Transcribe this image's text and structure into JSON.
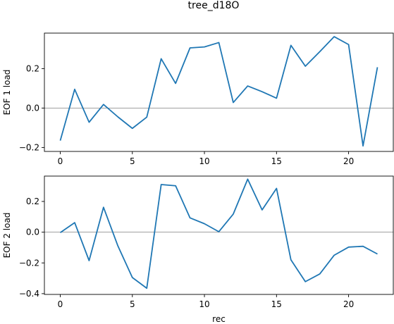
{
  "figure_title": "tree_d18O",
  "colors": {
    "series": "#1f77b4",
    "zero_line": "#808080"
  },
  "chart_data": [
    {
      "type": "line",
      "title": "",
      "xlabel": "",
      "ylabel": "EOF 1 load",
      "xlim": [
        -1.1,
        23.1
      ],
      "ylim": [
        -0.22,
        0.38
      ],
      "xticks": [
        0,
        5,
        10,
        15,
        20
      ],
      "xtick_labels": [
        "0",
        "5",
        "10",
        "15",
        "20"
      ],
      "yticks": [
        -0.2,
        0.0,
        0.2
      ],
      "ytick_labels": [
        "−0.2",
        "0.0",
        "0.2"
      ],
      "zero_line": 0,
      "grid": false,
      "x": [
        0,
        1,
        2,
        3,
        4,
        5,
        6,
        7,
        8,
        9,
        10,
        11,
        12,
        13,
        14,
        15,
        16,
        17,
        18,
        19,
        20,
        21,
        22
      ],
      "series": [
        {
          "values": [
            -0.165,
            0.095,
            -0.072,
            0.018,
            -0.045,
            -0.103,
            -0.046,
            0.25,
            0.125,
            0.305,
            0.31,
            0.332,
            0.028,
            0.112,
            0.083,
            0.05,
            0.318,
            0.212,
            0.286,
            0.362,
            0.322,
            -0.192,
            0.207
          ]
        }
      ]
    },
    {
      "type": "line",
      "title": "",
      "xlabel": "rec",
      "ylabel": "EOF 2 load",
      "xlim": [
        -1.1,
        23.1
      ],
      "ylim": [
        -0.405,
        0.365
      ],
      "xticks": [
        0,
        5,
        10,
        15,
        20
      ],
      "xtick_labels": [
        "0",
        "5",
        "10",
        "15",
        "20"
      ],
      "yticks": [
        -0.4,
        -0.2,
        0.0,
        0.2
      ],
      "ytick_labels": [
        "−0.4",
        "−0.2",
        "0.0",
        "0.2"
      ],
      "zero_line": 0,
      "grid": false,
      "x": [
        0,
        1,
        2,
        3,
        4,
        5,
        6,
        7,
        8,
        9,
        10,
        11,
        12,
        13,
        14,
        15,
        16,
        17,
        18,
        19,
        20,
        21,
        22
      ],
      "series": [
        {
          "values": [
            -0.003,
            0.062,
            -0.185,
            0.162,
            -0.09,
            -0.295,
            -0.365,
            0.31,
            0.302,
            0.093,
            0.055,
            0.003,
            0.118,
            0.345,
            0.145,
            0.285,
            -0.18,
            -0.322,
            -0.272,
            -0.15,
            -0.097,
            -0.092,
            -0.142
          ]
        }
      ]
    }
  ]
}
